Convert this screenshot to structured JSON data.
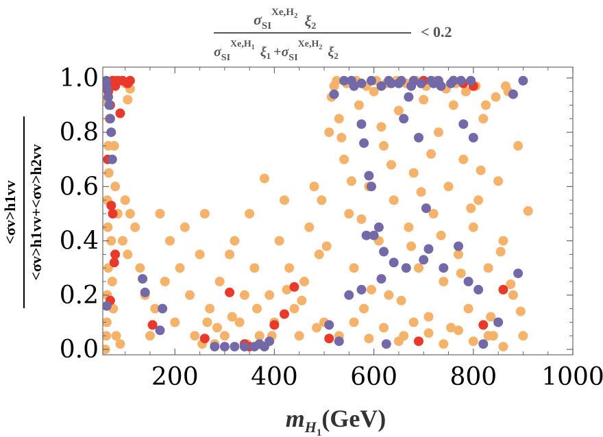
{
  "chart_data": {
    "type": "scatter",
    "title": {
      "num_sigma": "σ",
      "num_sub": "SI",
      "num_sup": "Xe,H",
      "num_sup_sub": "2",
      "num_xi": "ξ",
      "num_xi_sub": "2",
      "den_sigma1": "σ",
      "den_sub1": "SI",
      "den_sup1": "Xe,H",
      "den_sup_sub1": "1",
      "den_xi1": "ξ",
      "den_xi_sub1": "1",
      "den_plus": "+",
      "den_sigma2": "σ",
      "den_sub2": "SI",
      "den_sup2": "Xe,H",
      "den_sup_sub2": "2",
      "den_xi2": "ξ",
      "den_xi_sub2": "2",
      "condition": "< 0.2"
    },
    "xlabel": {
      "m": "m",
      "sub": "H",
      "subsub": "1",
      "unit": "(GeV)"
    },
    "ylabel": {
      "numerator": "<σv>h1vv",
      "denominator": "<σv>h1vv+<σv>h2vv"
    },
    "xlim": [
      55,
      1000
    ],
    "ylim": [
      -0.02,
      1.04
    ],
    "xticks": [
      200,
      400,
      600,
      800,
      1000
    ],
    "yticks": [
      0.0,
      0.2,
      0.4,
      0.6,
      0.8,
      1.0
    ],
    "ytick_labels": [
      "0.0",
      "0.2",
      "0.4",
      "0.6",
      "0.8",
      "1.0"
    ],
    "colors": {
      "orange": "#f5b26b",
      "red": "#e8392b",
      "purple": "#7469a8"
    },
    "series": [
      {
        "name": "orange",
        "points": [
          [
            60,
            0.0
          ],
          [
            62,
            0.05
          ],
          [
            63,
            0.1
          ],
          [
            64,
            0.2
          ],
          [
            66,
            0.3
          ],
          [
            65,
            0.45
          ],
          [
            64,
            0.55
          ],
          [
            67,
            0.65
          ],
          [
            66,
            0.75
          ],
          [
            68,
            0.85
          ],
          [
            62,
            0.92
          ],
          [
            70,
            0.97
          ],
          [
            75,
            0.99
          ],
          [
            80,
            0.99
          ],
          [
            90,
            0.99
          ],
          [
            100,
            0.98
          ],
          [
            110,
            0.96
          ],
          [
            105,
            0.92
          ],
          [
            78,
            0.75
          ],
          [
            80,
            0.6
          ],
          [
            85,
            0.5
          ],
          [
            72,
            0.4
          ],
          [
            74,
            0.25
          ],
          [
            76,
            0.15
          ],
          [
            82,
            0.05
          ],
          [
            90,
            0.02
          ],
          [
            100,
            0.55
          ],
          [
            110,
            0.5
          ],
          [
            95,
            0.4
          ],
          [
            105,
            0.35
          ],
          [
            120,
            0.45
          ],
          [
            130,
            0.3
          ],
          [
            140,
            0.2
          ],
          [
            150,
            0.05
          ],
          [
            160,
            0.15
          ],
          [
            170,
            0.5
          ],
          [
            180,
            0.25
          ],
          [
            190,
            0.4
          ],
          [
            200,
            0.1
          ],
          [
            210,
            0.3
          ],
          [
            220,
            0.45
          ],
          [
            230,
            0.2
          ],
          [
            240,
            0.05
          ],
          [
            250,
            0.35
          ],
          [
            260,
            0.5
          ],
          [
            270,
            0.15
          ],
          [
            280,
            0.02
          ],
          [
            290,
            0.25
          ],
          [
            300,
            0.05
          ],
          [
            310,
            0.35
          ],
          [
            320,
            0.4
          ],
          [
            330,
            0.1
          ],
          [
            340,
            0.2
          ],
          [
            350,
            0.5
          ],
          [
            360,
            0.3
          ],
          [
            370,
            0.05
          ],
          [
            380,
            0.63
          ],
          [
            390,
            0.2
          ],
          [
            400,
            0.1
          ],
          [
            410,
            0.4
          ],
          [
            420,
            0.55
          ],
          [
            430,
            0.3
          ],
          [
            440,
            0.15
          ],
          [
            450,
            0.05
          ],
          [
            460,
            0.25
          ],
          [
            470,
            0.45
          ],
          [
            480,
            0.6
          ],
          [
            490,
            0.35
          ],
          [
            500,
            0.1
          ],
          [
            510,
            0.8
          ],
          [
            520,
            0.97
          ],
          [
            530,
            0.85
          ],
          [
            540,
            0.7
          ],
          [
            550,
            0.5
          ],
          [
            560,
            0.3
          ],
          [
            570,
            0.9
          ],
          [
            580,
            0.15
          ],
          [
            590,
            0.6
          ],
          [
            600,
            0.95
          ],
          [
            610,
            0.4
          ],
          [
            620,
            0.75
          ],
          [
            630,
            0.2
          ],
          [
            640,
            0.55
          ],
          [
            650,
            0.88
          ],
          [
            660,
            0.05
          ],
          [
            670,
            0.45
          ],
          [
            680,
            0.65
          ],
          [
            690,
            0.3
          ],
          [
            700,
            0.92
          ],
          [
            710,
            0.12
          ],
          [
            720,
            0.5
          ],
          [
            730,
            0.8
          ],
          [
            740,
            0.25
          ],
          [
            750,
            0.6
          ],
          [
            760,
            0.9
          ],
          [
            770,
            0.35
          ],
          [
            780,
            0.7
          ],
          [
            790,
            0.15
          ],
          [
            800,
            0.45
          ],
          [
            810,
            0.55
          ],
          [
            820,
            0.85
          ],
          [
            830,
            0.3
          ],
          [
            840,
            0.05
          ],
          [
            850,
            0.62
          ],
          [
            860,
            0.4
          ],
          [
            870,
            0.95
          ],
          [
            880,
            0.2
          ],
          [
            890,
            0.75
          ],
          [
            900,
            0.05
          ],
          [
            910,
            0.51
          ],
          [
            525,
            0.99
          ],
          [
            545,
            0.98
          ],
          [
            565,
            0.99
          ],
          [
            585,
            0.97
          ],
          [
            605,
            0.99
          ],
          [
            625,
            0.98
          ],
          [
            645,
            0.99
          ],
          [
            665,
            0.98
          ],
          [
            685,
            0.99
          ],
          [
            705,
            0.97
          ],
          [
            725,
            0.99
          ],
          [
            745,
            0.96
          ],
          [
            765,
            0.98
          ],
          [
            785,
            0.95
          ],
          [
            805,
            0.97
          ],
          [
            825,
            0.9
          ],
          [
            845,
            0.93
          ],
          [
            865,
            0.97
          ],
          [
            515,
            0.93
          ],
          [
            535,
            0.78
          ],
          [
            555,
            0.62
          ],
          [
            575,
            0.48
          ],
          [
            595,
            0.22
          ],
          [
            615,
            0.82
          ],
          [
            635,
            0.68
          ],
          [
            655,
            0.18
          ],
          [
            675,
            0.38
          ],
          [
            695,
            0.58
          ],
          [
            715,
            0.72
          ],
          [
            735,
            0.42
          ],
          [
            755,
            0.08
          ],
          [
            775,
            0.28
          ],
          [
            795,
            0.52
          ],
          [
            815,
            0.66
          ],
          [
            835,
            0.12
          ],
          [
            855,
            0.36
          ],
          [
            875,
            0.24
          ],
          [
            530,
            0.05
          ],
          [
            560,
            0.1
          ],
          [
            590,
            0.04
          ],
          [
            620,
            0.08
          ],
          [
            650,
            0.03
          ],
          [
            680,
            0.1
          ],
          [
            710,
            0.06
          ],
          [
            740,
            0.02
          ],
          [
            770,
            0.07
          ],
          [
            800,
            0.03
          ],
          [
            830,
            0.05
          ],
          [
            860,
            0.01
          ],
          [
            895,
            0.14
          ],
          [
            255,
            0.02
          ],
          [
            265,
            0.1
          ],
          [
            285,
            0.08
          ],
          [
            315,
            0.12
          ],
          [
            345,
            0.02
          ],
          [
            365,
            0.15
          ],
          [
            395,
            0.05
          ],
          [
            425,
            0.22
          ],
          [
            455,
            0.18
          ],
          [
            485,
            0.08
          ],
          [
            505,
            0.38
          ],
          [
            495,
            0.55
          ]
        ]
      },
      {
        "name": "red",
        "points": [
          [
            62,
            0.98
          ],
          [
            66,
            0.95
          ],
          [
            70,
            0.9
          ],
          [
            75,
            0.99
          ],
          [
            80,
            0.97
          ],
          [
            85,
            0.99
          ],
          [
            95,
            0.99
          ],
          [
            105,
            0.98
          ],
          [
            110,
            0.99
          ],
          [
            90,
            0.87
          ],
          [
            72,
            0.53
          ],
          [
            75,
            0.5
          ],
          [
            80,
            0.35
          ],
          [
            78,
            0.32
          ],
          [
            70,
            0.18
          ],
          [
            65,
            0.7
          ],
          [
            155,
            0.09
          ],
          [
            260,
            0.04
          ],
          [
            310,
            0.21
          ],
          [
            340,
            0.02
          ],
          [
            350,
            0.01
          ],
          [
            400,
            0.09
          ],
          [
            420,
            0.13
          ],
          [
            440,
            0.23
          ],
          [
            510,
            0.04
          ],
          [
            690,
            0.03
          ],
          [
            700,
            0.99
          ],
          [
            760,
            0.99
          ],
          [
            780,
            0.98
          ],
          [
            800,
            0.97
          ],
          [
            820,
            0.09
          ],
          [
            860,
            0.22
          ]
        ]
      },
      {
        "name": "purple",
        "points": [
          [
            62,
            0.99
          ],
          [
            64,
            0.96
          ],
          [
            66,
            0.93
          ],
          [
            68,
            0.9
          ],
          [
            70,
            0.85
          ],
          [
            72,
            0.8
          ],
          [
            74,
            0.7
          ],
          [
            63,
            0.16
          ],
          [
            135,
            0.26
          ],
          [
            140,
            0.21
          ],
          [
            175,
            0.15
          ],
          [
            170,
            0.07
          ],
          [
            280,
            0.01
          ],
          [
            300,
            0.01
          ],
          [
            320,
            0.01
          ],
          [
            340,
            0.01
          ],
          [
            360,
            0.01
          ],
          [
            370,
            0.02
          ],
          [
            380,
            0.01
          ],
          [
            390,
            0.03
          ],
          [
            510,
            0.09
          ],
          [
            520,
            0.94
          ],
          [
            540,
            0.99
          ],
          [
            560,
            0.97
          ],
          [
            575,
            0.83
          ],
          [
            580,
            0.76
          ],
          [
            590,
            0.64
          ],
          [
            595,
            0.6
          ],
          [
            600,
            0.42
          ],
          [
            610,
            0.45
          ],
          [
            620,
            0.36
          ],
          [
            630,
            0.99
          ],
          [
            640,
            0.32
          ],
          [
            650,
            0.98
          ],
          [
            660,
            0.85
          ],
          [
            670,
            0.93
          ],
          [
            680,
            0.99
          ],
          [
            690,
            0.78
          ],
          [
            700,
            0.33
          ],
          [
            705,
            0.52
          ],
          [
            710,
            0.37
          ],
          [
            720,
            0.98
          ],
          [
            730,
            0.99
          ],
          [
            740,
            0.3
          ],
          [
            760,
            0.99
          ],
          [
            770,
            0.38
          ],
          [
            780,
            0.83
          ],
          [
            790,
            0.25
          ],
          [
            800,
            0.78
          ],
          [
            810,
            0.22
          ],
          [
            820,
            0.02
          ],
          [
            850,
            0.1
          ],
          [
            880,
            0.94
          ],
          [
            890,
            0.28
          ],
          [
            900,
            0.99
          ],
          [
            555,
            0.99
          ],
          [
            575,
            0.98
          ],
          [
            595,
            0.99
          ],
          [
            615,
            0.97
          ],
          [
            635,
            0.98
          ],
          [
            655,
            0.99
          ],
          [
            675,
            0.97
          ],
          [
            695,
            0.98
          ],
          [
            715,
            0.99
          ],
          [
            735,
            0.97
          ],
          [
            755,
            0.98
          ],
          [
            775,
            0.99
          ],
          [
            795,
            0.99
          ],
          [
            665,
            0.3
          ],
          [
            625,
            0.02
          ],
          [
            575,
            0.22
          ],
          [
            550,
            0.2
          ],
          [
            530,
            0.03
          ],
          [
            585,
            0.42
          ],
          [
            615,
            0.26
          ]
        ]
      }
    ]
  }
}
